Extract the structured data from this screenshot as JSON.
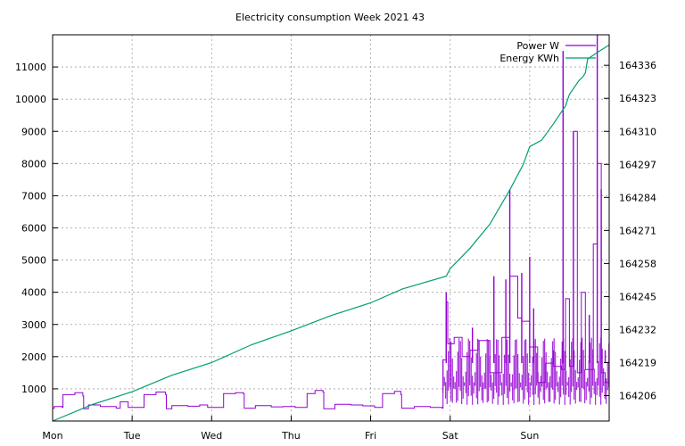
{
  "chart_data": {
    "type": "line",
    "title": "Electricity consumption Week 2021 43",
    "x_tick_labels": [
      "Mon",
      "Tue",
      "Wed",
      "Thu",
      "Fri",
      "Sat",
      "Sun"
    ],
    "x_range_days": [
      0,
      7
    ],
    "y_left": {
      "range": [
        0,
        12000
      ],
      "ticks": [
        1000,
        2000,
        3000,
        4000,
        5000,
        6000,
        7000,
        8000,
        9000,
        10000,
        11000
      ]
    },
    "y_right": {
      "range": [
        164196,
        164348
      ],
      "ticks": [
        164206,
        164219,
        164232,
        164245,
        164258,
        164271,
        164284,
        164297,
        164310,
        164323,
        164336
      ]
    },
    "grid": true,
    "legend_position": "top-right",
    "series": [
      {
        "name": "Power W",
        "axis": "left",
        "color": "#9400d3",
        "points": [
          [
            0.0,
            400
          ],
          [
            0.02,
            450
          ],
          [
            0.12,
            420
          ],
          [
            0.13,
            820
          ],
          [
            0.28,
            880
          ],
          [
            0.38,
            780
          ],
          [
            0.39,
            380
          ],
          [
            0.45,
            500
          ],
          [
            0.6,
            450
          ],
          [
            0.8,
            400
          ],
          [
            0.85,
            600
          ],
          [
            0.95,
            420
          ],
          [
            1.15,
            820
          ],
          [
            1.3,
            900
          ],
          [
            1.42,
            820
          ],
          [
            1.43,
            380
          ],
          [
            1.5,
            480
          ],
          [
            1.7,
            460
          ],
          [
            1.85,
            500
          ],
          [
            1.95,
            420
          ],
          [
            2.15,
            850
          ],
          [
            2.3,
            880
          ],
          [
            2.4,
            850
          ],
          [
            2.41,
            400
          ],
          [
            2.55,
            480
          ],
          [
            2.75,
            440
          ],
          [
            2.9,
            450
          ],
          [
            3.05,
            420
          ],
          [
            3.2,
            850
          ],
          [
            3.3,
            950
          ],
          [
            3.4,
            900
          ],
          [
            3.41,
            380
          ],
          [
            3.55,
            520
          ],
          [
            3.75,
            500
          ],
          [
            3.9,
            470
          ],
          [
            4.05,
            420
          ],
          [
            4.15,
            850
          ],
          [
            4.3,
            920
          ],
          [
            4.38,
            820
          ],
          [
            4.39,
            400
          ],
          [
            4.55,
            450
          ],
          [
            4.75,
            420
          ],
          [
            4.9,
            400
          ],
          [
            4.91,
            1900
          ],
          [
            4.95,
            3700
          ],
          [
            4.97,
            2400
          ],
          [
            5.05,
            2600
          ],
          [
            5.15,
            2000
          ],
          [
            5.25,
            2200
          ],
          [
            5.35,
            2500
          ],
          [
            5.5,
            1500
          ],
          [
            5.65,
            2600
          ],
          [
            5.75,
            4500
          ],
          [
            5.85,
            3200
          ],
          [
            5.9,
            3100
          ],
          [
            6.0,
            2300
          ],
          [
            6.1,
            1200
          ],
          [
            6.2,
            1800
          ],
          [
            6.3,
            1700
          ],
          [
            6.4,
            1600
          ],
          [
            6.45,
            3800
          ],
          [
            6.5,
            1700
          ],
          [
            6.55,
            9000
          ],
          [
            6.6,
            1500
          ],
          [
            6.65,
            4000
          ],
          [
            6.7,
            1600
          ],
          [
            6.8,
            5500
          ],
          [
            6.85,
            8000
          ],
          [
            6.9,
            1500
          ],
          [
            6.95,
            1200
          ],
          [
            7.0,
            900
          ]
        ],
        "note_spike_bands_max": [
          [
            4.95,
            4000
          ],
          [
            5.28,
            2900
          ],
          [
            5.55,
            4500
          ],
          [
            5.7,
            4400
          ],
          [
            5.75,
            7200
          ],
          [
            5.9,
            4600
          ],
          [
            6.0,
            5100
          ],
          [
            6.05,
            3500
          ],
          [
            6.3,
            2200
          ],
          [
            6.42,
            11500
          ],
          [
            6.55,
            9000
          ],
          [
            6.75,
            3300
          ],
          [
            6.85,
            12000
          ],
          [
            6.9,
            7200
          ],
          [
            6.95,
            2200
          ]
        ]
      },
      {
        "name": "Energy KWh",
        "axis": "right",
        "color": "#009e73",
        "points": [
          [
            0.0,
            164196.0
          ],
          [
            0.5,
            164202.5
          ],
          [
            1.0,
            164207.5
          ],
          [
            1.5,
            164214.0
          ],
          [
            2.0,
            164219.0
          ],
          [
            2.5,
            164226.0
          ],
          [
            3.0,
            164231.5
          ],
          [
            3.5,
            164237.5
          ],
          [
            4.0,
            164242.5
          ],
          [
            4.4,
            164248.0
          ],
          [
            4.95,
            164253.0
          ],
          [
            5.0,
            164256.0
          ],
          [
            5.25,
            164264.0
          ],
          [
            5.5,
            164273.5
          ],
          [
            5.75,
            164287.0
          ],
          [
            5.92,
            164297.0
          ],
          [
            6.0,
            164304.0
          ],
          [
            6.15,
            164306.5
          ],
          [
            6.3,
            164313.0
          ],
          [
            6.45,
            164320.0
          ],
          [
            6.5,
            164324.5
          ],
          [
            6.62,
            164330.0
          ],
          [
            6.67,
            164331.5
          ],
          [
            6.7,
            164333.0
          ],
          [
            6.73,
            164338.5
          ],
          [
            6.85,
            164341.0
          ],
          [
            7.0,
            164344.0
          ]
        ]
      }
    ]
  }
}
